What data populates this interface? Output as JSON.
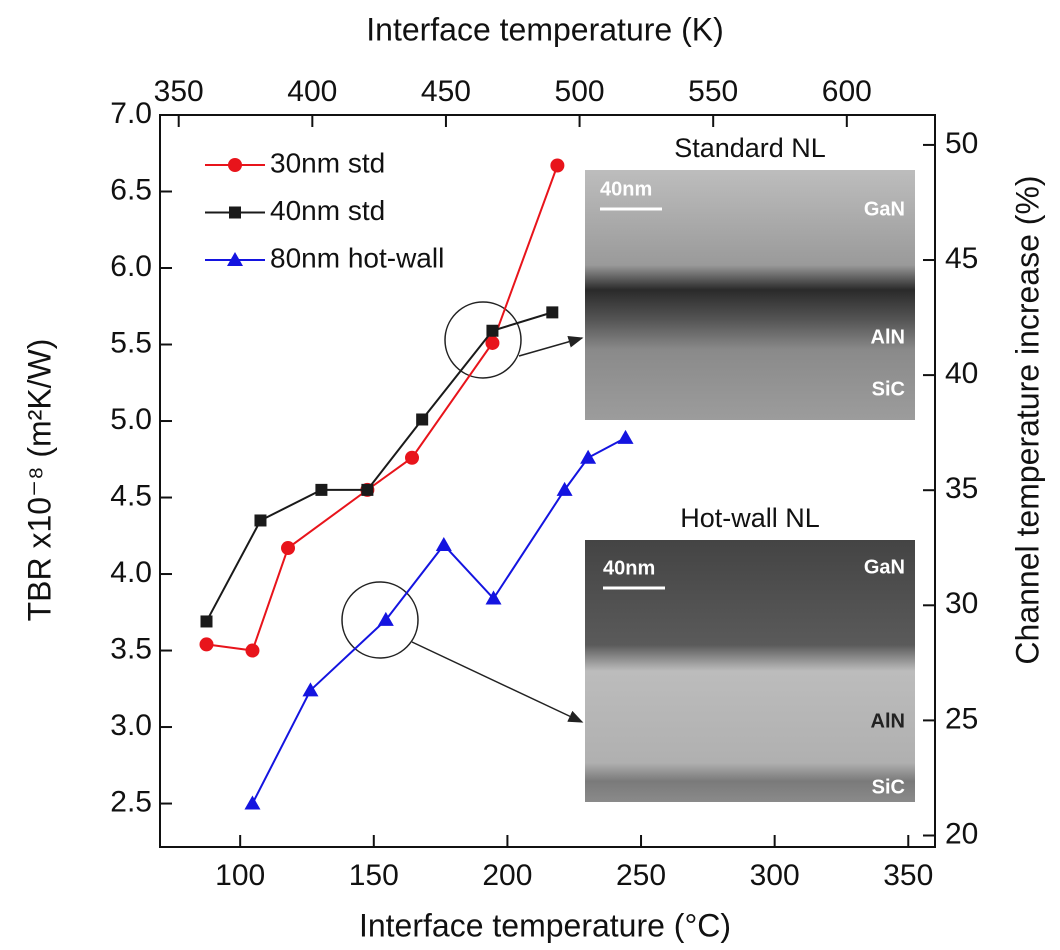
{
  "chart_data": {
    "type": "line",
    "x_label": "Interface temperature (°C)",
    "x2_label": "Interface temperature (K)",
    "y_label": "TBR x10⁻⁸ (m²K/W)",
    "y2_label": "Channel temperature increase (%)",
    "xlim": [
      70,
      360
    ],
    "xticks": [
      100,
      150,
      200,
      250,
      300,
      350
    ],
    "x2lim": [
      343,
      633
    ],
    "x2ticks": [
      350,
      400,
      450,
      500,
      550,
      600
    ],
    "ylim": [
      7.0,
      2.216
    ],
    "yticks": [
      {
        "value": 7.0,
        "label": "7.0"
      },
      6.5,
      {
        "value": 6.0,
        "label": "6.0"
      },
      5.5,
      {
        "value": 5.0,
        "label": "5.0"
      },
      4.5,
      {
        "value": 4.0,
        "label": "4.0"
      },
      3.5,
      {
        "value": 3.0,
        "label": "3.0"
      },
      2.5
    ],
    "y2lim": [
      51.3,
      19.5
    ],
    "y2ticks": [
      50,
      45,
      40,
      35,
      30,
      25,
      20
    ],
    "series": [
      {
        "name": "30nm std",
        "color": "#e8141b",
        "marker": "circle",
        "x": [
          87.4,
          104.6,
          117.9,
          147.6,
          164.3,
          194.4,
          218.7
        ],
        "values": [
          3.54,
          3.5,
          4.17,
          4.55,
          4.76,
          5.51,
          6.67
        ]
      },
      {
        "name": "40nm std",
        "color": "#1a1a1a",
        "marker": "square",
        "x": [
          87.4,
          107.6,
          130.4,
          147.6,
          168.1,
          194.4,
          216.8
        ],
        "values": [
          3.69,
          4.35,
          4.55,
          4.55,
          5.01,
          5.59,
          5.71
        ]
      },
      {
        "name": "80nm hot-wall",
        "color": "#1414e0",
        "marker": "triangle",
        "x": [
          104.6,
          126.3,
          154.5,
          176.2,
          194.8,
          221.4,
          230.2,
          244.2
        ],
        "values": [
          2.5,
          3.24,
          3.7,
          4.19,
          3.84,
          4.55,
          4.76,
          4.89
        ]
      }
    ],
    "insets": [
      {
        "title": "Standard NL",
        "scale": "40nm",
        "layers": [
          "GaN",
          "AlN",
          "SiC"
        ]
      },
      {
        "title": "Hot-wall NL",
        "scale": "40nm",
        "layers": [
          "GaN",
          "AlN",
          "SiC"
        ]
      }
    ]
  }
}
